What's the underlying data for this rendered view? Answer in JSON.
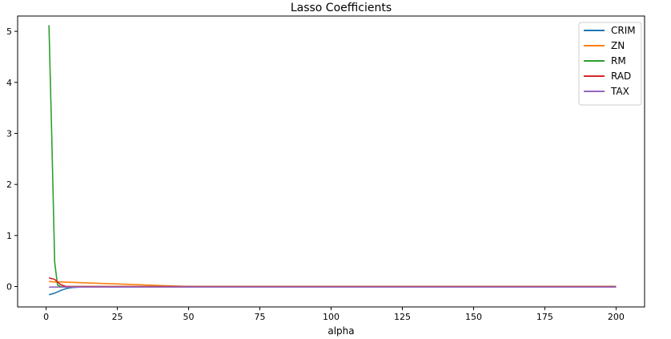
{
  "chart_data": {
    "type": "line",
    "title": "Lasso Coefficients",
    "xlabel": "alpha",
    "ylabel": "",
    "xlim": [
      -10,
      210
    ],
    "ylim": [
      -0.4,
      5.3
    ],
    "xticks": [
      0,
      25,
      50,
      75,
      100,
      125,
      150,
      175,
      200
    ],
    "yticks": [
      0,
      1,
      2,
      3,
      4,
      5
    ],
    "grid": false,
    "legend_position": "top-right",
    "series": [
      {
        "name": "CRIM",
        "color": "#1f77b4",
        "x": [
          1,
          3,
          5,
          7,
          9,
          12,
          200
        ],
        "y": [
          -0.16,
          -0.13,
          -0.08,
          -0.04,
          -0.02,
          -0.01,
          -0.01
        ]
      },
      {
        "name": "ZN",
        "color": "#ff7f0e",
        "x": [
          1,
          3,
          5,
          10,
          20,
          30,
          40,
          50,
          200
        ],
        "y": [
          0.1,
          0.09,
          0.09,
          0.08,
          0.06,
          0.04,
          0.02,
          0.0,
          0.0
        ]
      },
      {
        "name": "RM",
        "color": "#2ca02c",
        "x": [
          1,
          2,
          3,
          4,
          5,
          200
        ],
        "y": [
          5.12,
          2.9,
          0.48,
          0.03,
          0.0,
          0.0
        ]
      },
      {
        "name": "RAD",
        "color": "#d62728",
        "x": [
          1,
          3,
          5,
          7,
          200
        ],
        "y": [
          0.17,
          0.14,
          0.04,
          0.0,
          0.0
        ]
      },
      {
        "name": "TAX",
        "color": "#9467bd",
        "x": [
          1,
          200
        ],
        "y": [
          -0.01,
          -0.01
        ]
      }
    ]
  }
}
